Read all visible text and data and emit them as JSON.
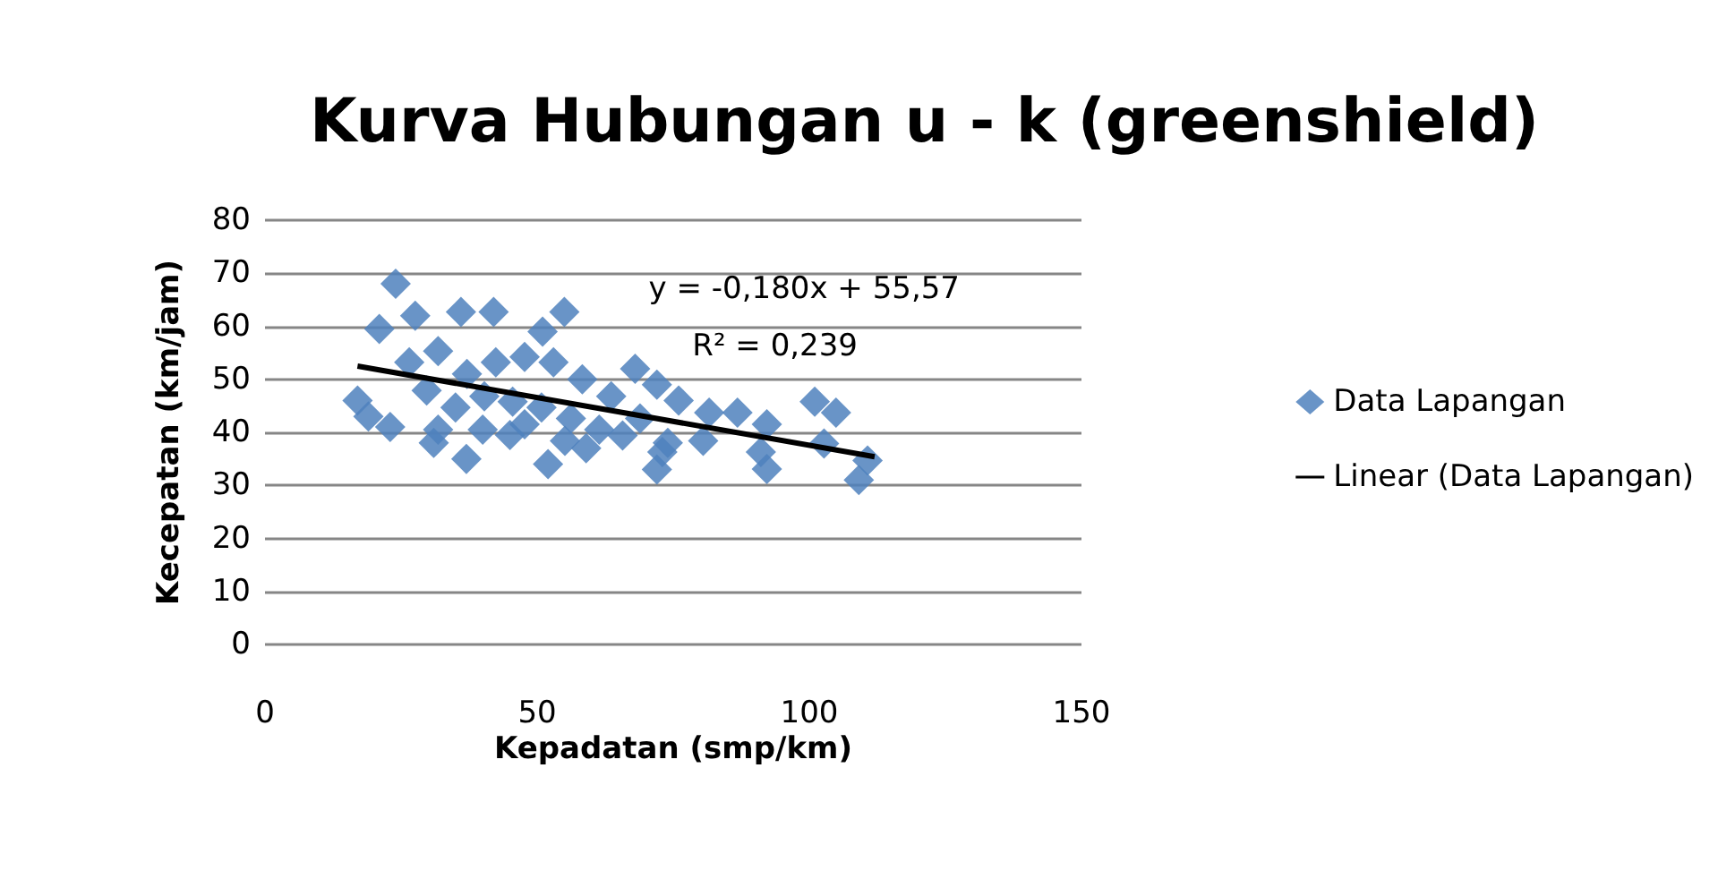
{
  "chart_data": {
    "type": "scatter",
    "title": "Kurva Hubungan u - k (greenshield)",
    "xlabel": "Kepadatan (smp/km)",
    "ylabel": "Kecepatan (km/jam)",
    "annotations": [
      "y = -0,180x + 55,57",
      "R² = 0,239"
    ],
    "xlim": [
      0,
      150
    ],
    "xticks": [
      0,
      50,
      100,
      150
    ],
    "ylim": [
      0,
      80
    ],
    "yticks": [
      0,
      10,
      20,
      30,
      40,
      50,
      60,
      70,
      80
    ],
    "grid": "y",
    "legend": "right",
    "marker": "diamond",
    "series": [
      {
        "name": "Data Lapangan",
        "color": "#4f81bd",
        "x": [
          24,
          21,
          17,
          19,
          23,
          31,
          27.6,
          36,
          42,
          55,
          51,
          37,
          52,
          59,
          72,
          74,
          68,
          76,
          40,
          45,
          26.5,
          31.8,
          37.1,
          42.4,
          47.7,
          53,
          58.3,
          63.6,
          68.9,
          29.7,
          35,
          40.3,
          45.5,
          50.8,
          56.2,
          61.4,
          65.7,
          31.8,
          47.7,
          55.1,
          72,
          81.6,
          80.5,
          86.8,
          92.2,
          91.1,
          92.2,
          101,
          104.9,
          102.7,
          110.7,
          109.1,
          73
        ],
        "values": [
          68,
          59.5,
          46,
          43,
          41,
          38,
          62,
          62.7,
          62.7,
          62.7,
          59,
          35,
          34,
          37,
          33,
          38,
          52,
          46,
          40.5,
          39.5,
          53.2,
          55.3,
          51,
          53.2,
          54.2,
          53.2,
          50,
          46.8,
          42.6,
          47.9,
          44.7,
          46.8,
          45.8,
          44.7,
          42.6,
          40.5,
          39.4,
          40.5,
          41.5,
          38.4,
          49,
          43.7,
          38.4,
          43.7,
          41.5,
          36.3,
          33.1,
          45.8,
          43.7,
          37.9,
          34.7,
          31,
          36.3
        ]
      },
      {
        "name": "Linear (Data Lapangan)",
        "color": "#000000",
        "type": "line",
        "marker": "none",
        "x": [
          17,
          112
        ],
        "values": [
          52.5,
          35.4
        ]
      }
    ]
  }
}
